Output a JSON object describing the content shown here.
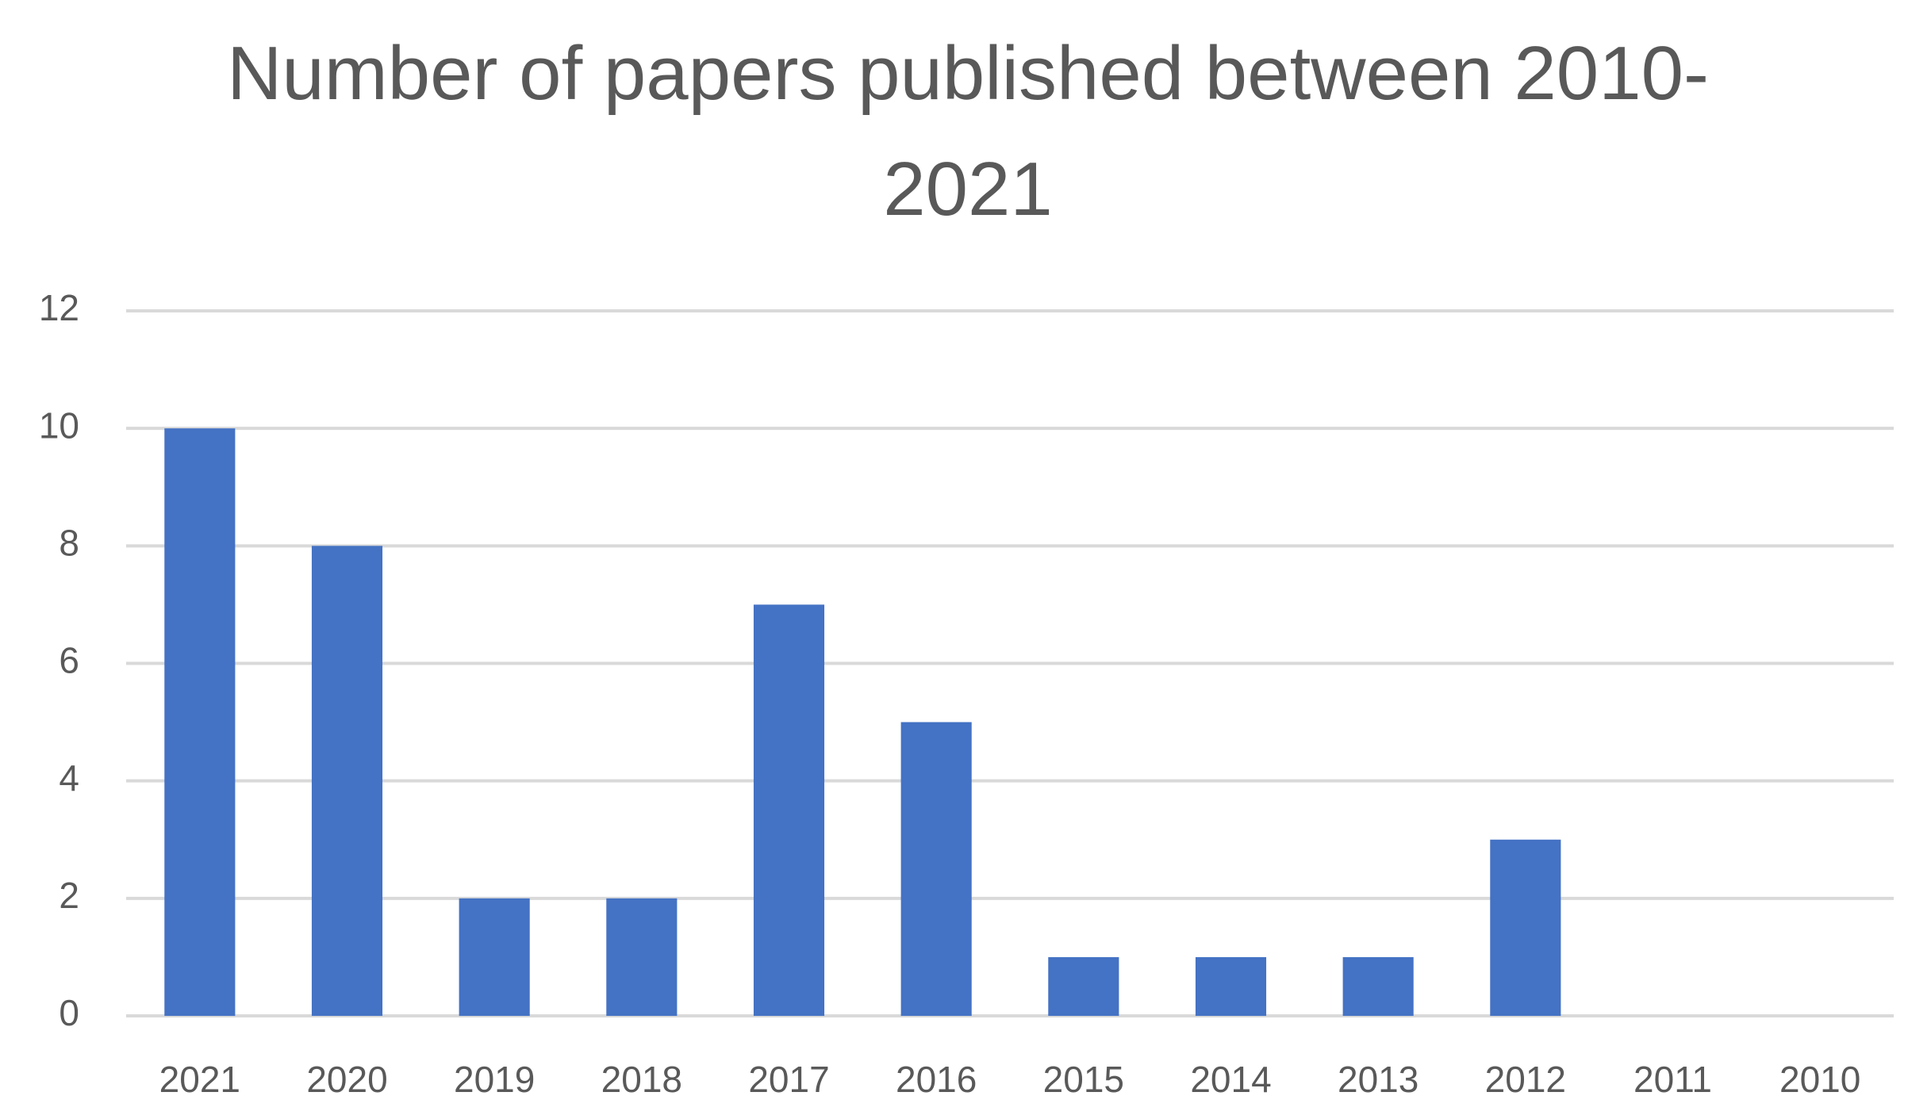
{
  "chart_data": {
    "type": "bar",
    "title": "Number of papers published between 2010-2021",
    "categories": [
      "2021",
      "2020",
      "2019",
      "2018",
      "2017",
      "2016",
      "2015",
      "2014",
      "2013",
      "2012",
      "2011",
      "2010"
    ],
    "values": [
      10,
      8,
      2,
      2,
      7,
      5,
      1,
      1,
      1,
      3,
      0,
      0
    ],
    "color": "#4472c4",
    "ylim": [
      0,
      12
    ],
    "yticks": [
      0,
      2,
      4,
      6,
      8,
      10,
      12
    ],
    "grid": true
  }
}
